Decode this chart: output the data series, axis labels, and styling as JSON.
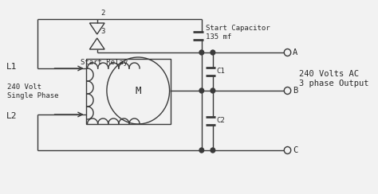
{
  "bg_color": "#f2f2f2",
  "line_color": "#3a3a3a",
  "text_color": "#2a2a2a",
  "title": "240 Volts AC\n3 phase Output",
  "label_L1": "L1",
  "label_L2": "L2",
  "label_A": "A",
  "label_B": "B",
  "label_C": "C",
  "label_C1": "C1",
  "label_C2": "C2",
  "label_2": "2",
  "label_3": "3",
  "label_relay": "Start Relay",
  "label_cap": "Start Capacitor\n135 mf",
  "label_240": "240 Volt\nSingle Phase"
}
